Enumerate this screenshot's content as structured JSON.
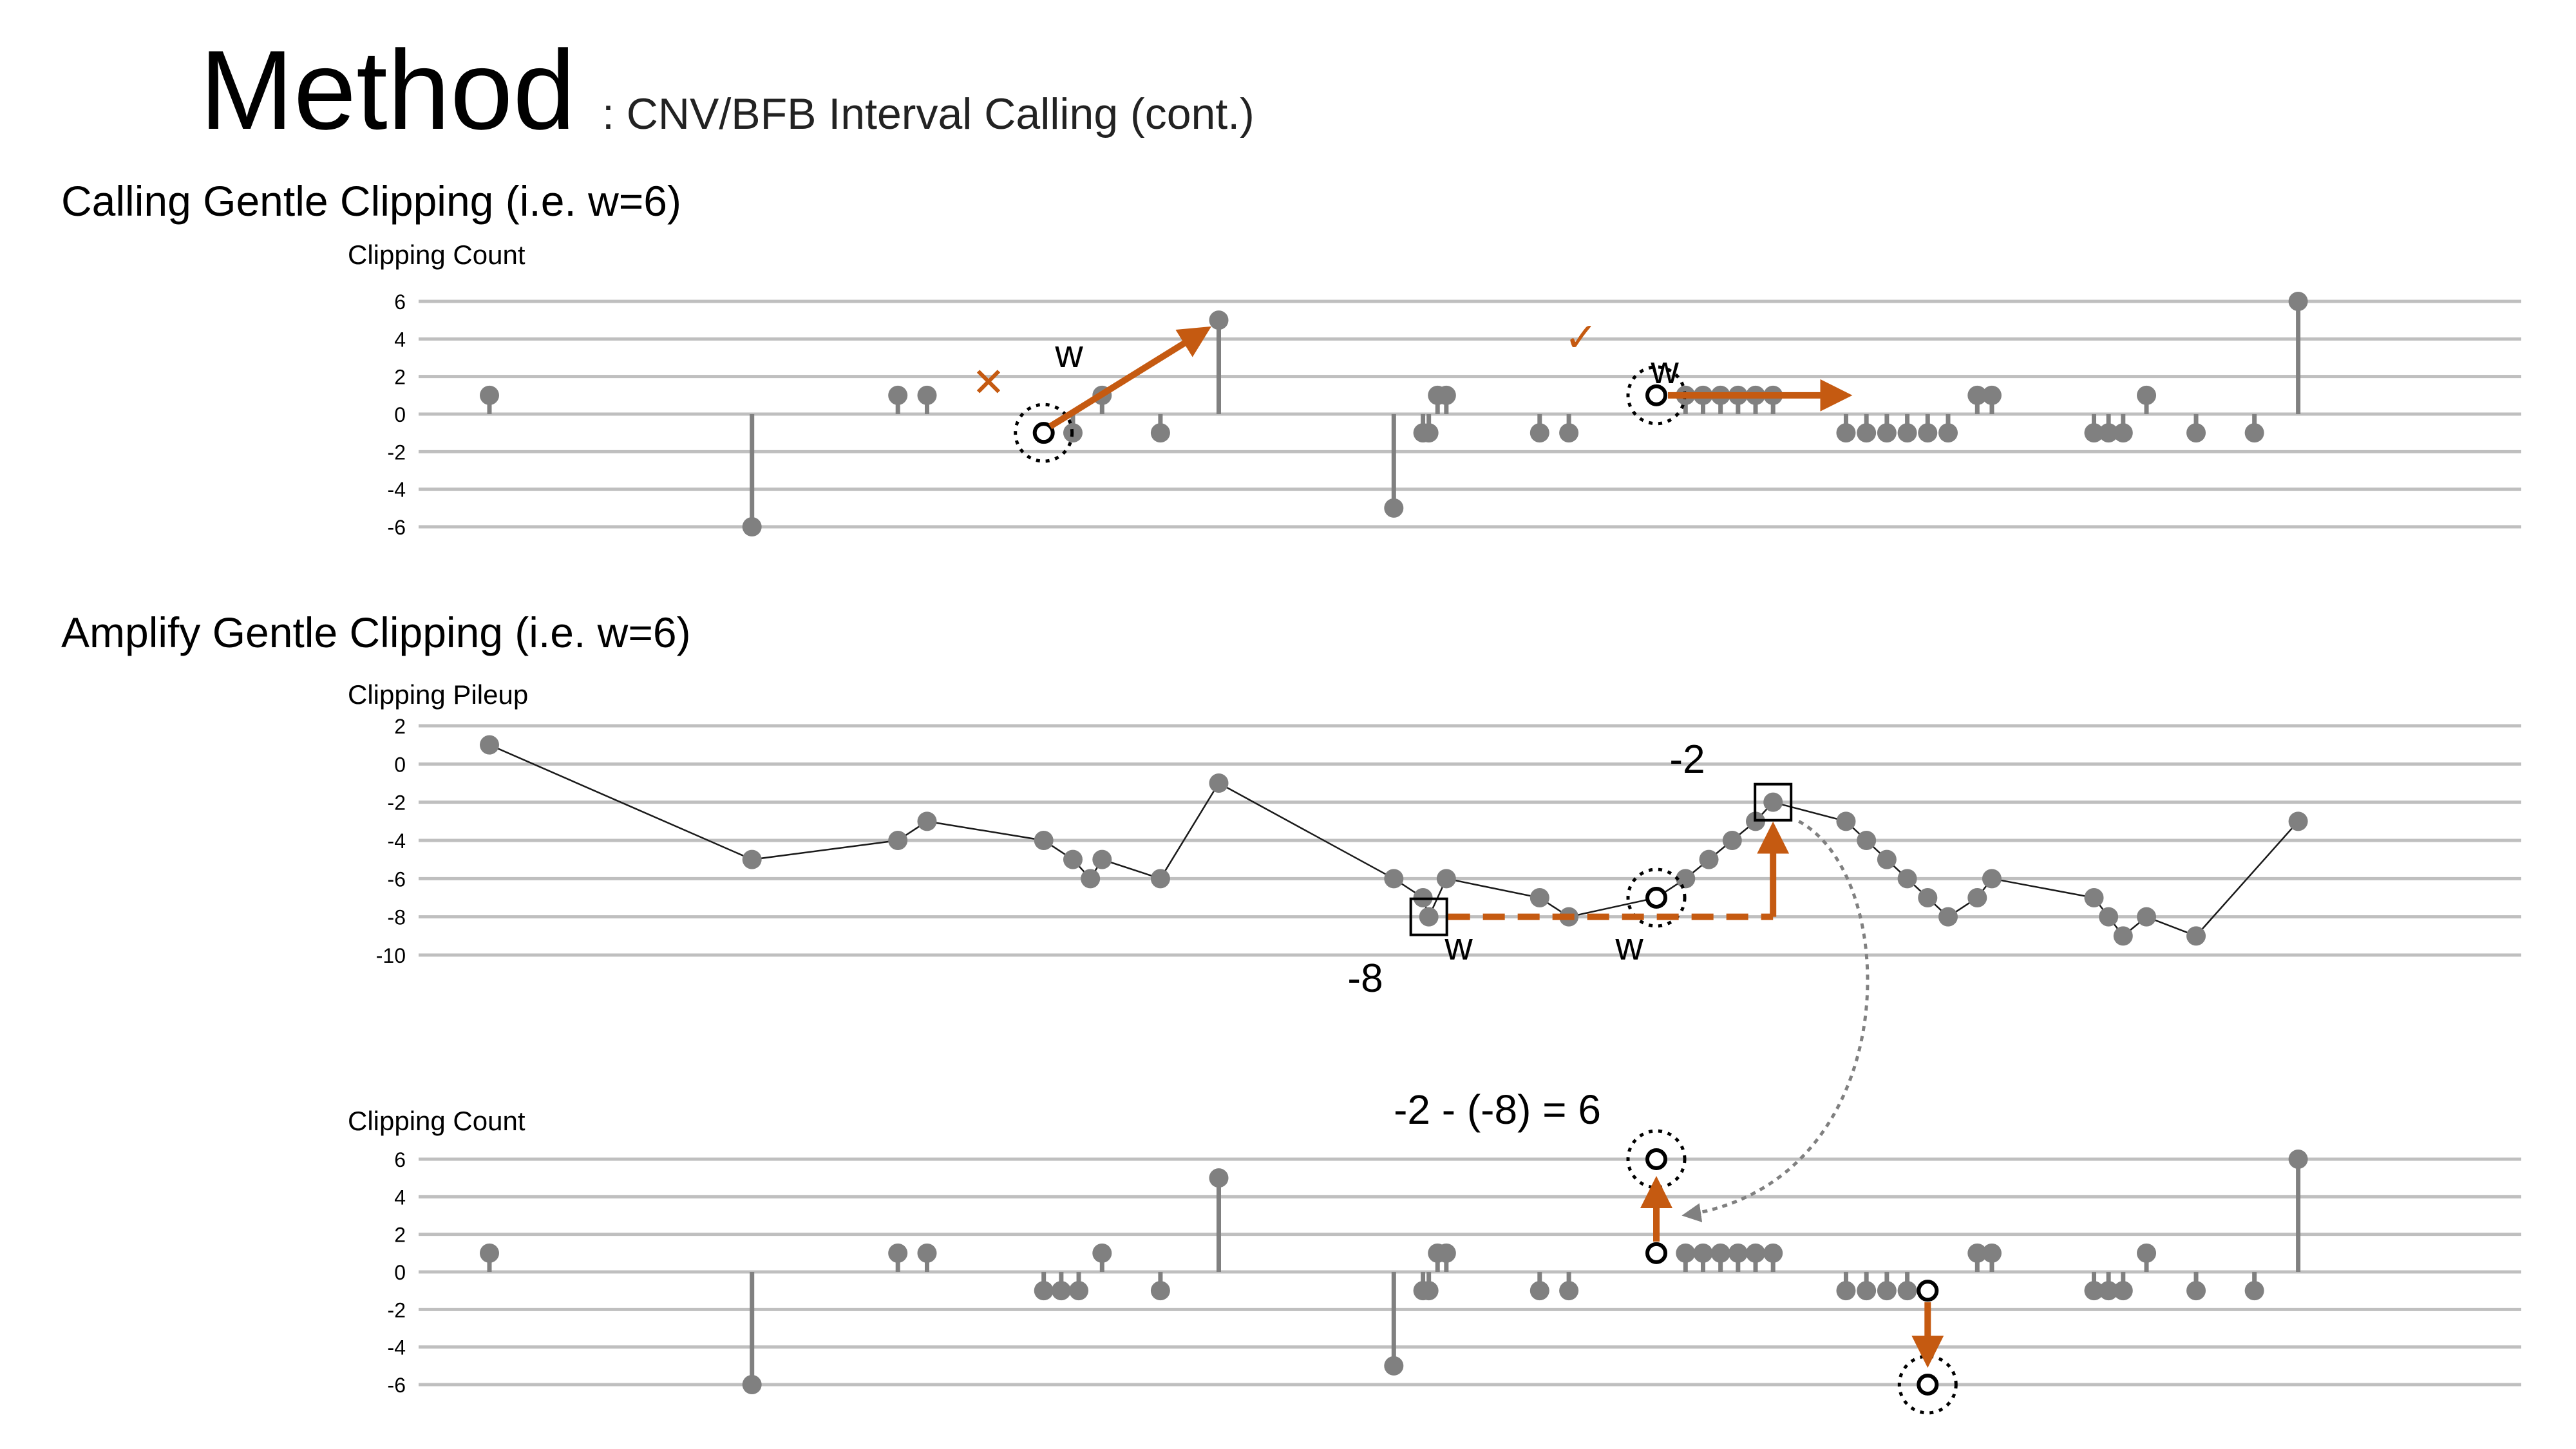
{
  "header": {
    "title": "Method",
    "subtitle": ": CNV/BFB Interval Calling (cont.)"
  },
  "sections": {
    "calling": "Calling Gentle Clipping (i.e. w=6)",
    "amplify": "Amplify Gentle Clipping (i.e. w=6)"
  },
  "colors": {
    "accent": "#C55A11",
    "marker": "#808080",
    "grid": "#BFBFBF",
    "line": "#1a1a1a"
  },
  "charts": [
    {
      "ylabel": "Clipping Count",
      "type": "stem",
      "yticks": [
        6,
        4,
        2,
        0,
        -2,
        -4,
        -6
      ],
      "points": [
        {
          "x": 1,
          "y": 1
        },
        {
          "x": 10,
          "y": -6
        },
        {
          "x": 15,
          "y": 1
        },
        {
          "x": 16,
          "y": 1
        },
        {
          "x": 20,
          "y": -1,
          "hollow": true
        },
        {
          "x": 21,
          "y": -1
        },
        {
          "x": 22,
          "y": 1
        },
        {
          "x": 24,
          "y": -1
        },
        {
          "x": 26,
          "y": 5
        },
        {
          "x": 32,
          "y": -5
        },
        {
          "x": 33,
          "y": -1
        },
        {
          "x": 33.2,
          "y": -1
        },
        {
          "x": 33.5,
          "y": 1
        },
        {
          "x": 33.8,
          "y": 1
        },
        {
          "x": 37,
          "y": -1
        },
        {
          "x": 38,
          "y": -1
        },
        {
          "x": 41,
          "y": 1,
          "hollow": true
        },
        {
          "x": 42,
          "y": 1
        },
        {
          "x": 42.6,
          "y": 1
        },
        {
          "x": 43.2,
          "y": 1
        },
        {
          "x": 43.8,
          "y": 1
        },
        {
          "x": 44.4,
          "y": 1
        },
        {
          "x": 45,
          "y": 1
        },
        {
          "x": 47.5,
          "y": -1
        },
        {
          "x": 48.2,
          "y": -1
        },
        {
          "x": 48.9,
          "y": -1
        },
        {
          "x": 49.6,
          "y": -1
        },
        {
          "x": 50.3,
          "y": -1
        },
        {
          "x": 51,
          "y": -1
        },
        {
          "x": 52,
          "y": 1
        },
        {
          "x": 52.5,
          "y": 1
        },
        {
          "x": 56,
          "y": -1
        },
        {
          "x": 56.5,
          "y": -1
        },
        {
          "x": 57,
          "y": -1
        },
        {
          "x": 57.8,
          "y": 1
        },
        {
          "x": 59.5,
          "y": -1
        },
        {
          "x": 61.5,
          "y": -1
        },
        {
          "x": 63,
          "y": 6
        }
      ],
      "annotations": {
        "cross_label": "✕",
        "check_label": "✓",
        "w1": "w",
        "w2": "w"
      }
    },
    {
      "ylabel": "Clipping Pileup",
      "type": "line",
      "yticks": [
        2,
        0,
        -2,
        -4,
        -6,
        -8,
        -10
      ],
      "points": [
        {
          "x": 1,
          "y": 1
        },
        {
          "x": 10,
          "y": -5
        },
        {
          "x": 15,
          "y": -4
        },
        {
          "x": 16,
          "y": -3
        },
        {
          "x": 20,
          "y": -4
        },
        {
          "x": 21,
          "y": -5
        },
        {
          "x": 21.6,
          "y": -6
        },
        {
          "x": 22,
          "y": -5
        },
        {
          "x": 24,
          "y": -6
        },
        {
          "x": 26,
          "y": -1
        },
        {
          "x": 32,
          "y": -6
        },
        {
          "x": 33,
          "y": -7
        },
        {
          "x": 33.2,
          "y": -8
        },
        {
          "x": 33.8,
          "y": -6
        },
        {
          "x": 37,
          "y": -7
        },
        {
          "x": 38,
          "y": -8
        },
        {
          "x": 41,
          "y": -7,
          "hollow": true
        },
        {
          "x": 42,
          "y": -6
        },
        {
          "x": 42.8,
          "y": -5
        },
        {
          "x": 43.6,
          "y": -4
        },
        {
          "x": 44.4,
          "y": -3
        },
        {
          "x": 45,
          "y": -2
        },
        {
          "x": 47.5,
          "y": -3
        },
        {
          "x": 48.2,
          "y": -4
        },
        {
          "x": 48.9,
          "y": -5
        },
        {
          "x": 49.6,
          "y": -6
        },
        {
          "x": 50.3,
          "y": -7
        },
        {
          "x": 51,
          "y": -8
        },
        {
          "x": 52,
          "y": -7
        },
        {
          "x": 52.5,
          "y": -6
        },
        {
          "x": 56,
          "y": -7
        },
        {
          "x": 56.5,
          "y": -8
        },
        {
          "x": 57,
          "y": -9
        },
        {
          "x": 57.8,
          "y": -8
        },
        {
          "x": 59.5,
          "y": -9
        },
        {
          "x": 63,
          "y": -3
        }
      ],
      "annotations": {
        "low_value": "-8",
        "high_value": "-2",
        "w1": "w",
        "w2": "w"
      }
    },
    {
      "ylabel": "Clipping Count",
      "type": "stem",
      "yticks": [
        6,
        4,
        2,
        0,
        -2,
        -4,
        -6
      ],
      "points": [
        {
          "x": 1,
          "y": 1
        },
        {
          "x": 10,
          "y": -6
        },
        {
          "x": 15,
          "y": 1
        },
        {
          "x": 16,
          "y": 1
        },
        {
          "x": 20,
          "y": -1
        },
        {
          "x": 20.6,
          "y": -1
        },
        {
          "x": 21.2,
          "y": -1
        },
        {
          "x": 22,
          "y": 1
        },
        {
          "x": 24,
          "y": -1
        },
        {
          "x": 26,
          "y": 5
        },
        {
          "x": 32,
          "y": -5
        },
        {
          "x": 33,
          "y": -1
        },
        {
          "x": 33.2,
          "y": -1
        },
        {
          "x": 33.5,
          "y": 1
        },
        {
          "x": 33.8,
          "y": 1
        },
        {
          "x": 37,
          "y": -1
        },
        {
          "x": 38,
          "y": -1
        },
        {
          "x": 41,
          "y": 1,
          "hollow": true
        },
        {
          "x": 42,
          "y": 1
        },
        {
          "x": 42.6,
          "y": 1
        },
        {
          "x": 43.2,
          "y": 1
        },
        {
          "x": 43.8,
          "y": 1
        },
        {
          "x": 44.4,
          "y": 1
        },
        {
          "x": 45,
          "y": 1
        },
        {
          "x": 47.5,
          "y": -1
        },
        {
          "x": 48.2,
          "y": -1
        },
        {
          "x": 48.9,
          "y": -1
        },
        {
          "x": 49.6,
          "y": -1
        },
        {
          "x": 50.3,
          "y": -1,
          "hollow": true
        },
        {
          "x": 52,
          "y": 1
        },
        {
          "x": 52.5,
          "y": 1
        },
        {
          "x": 56,
          "y": -1
        },
        {
          "x": 56.5,
          "y": -1
        },
        {
          "x": 57,
          "y": -1
        },
        {
          "x": 57.8,
          "y": 1
        },
        {
          "x": 59.5,
          "y": -1
        },
        {
          "x": 61.5,
          "y": -1
        },
        {
          "x": 63,
          "y": 6
        }
      ],
      "targets": [
        {
          "x": 41,
          "y": 6
        },
        {
          "x": 50.3,
          "y": -6
        }
      ],
      "annotations": {
        "equation": "-2 - (-8) = 6"
      }
    }
  ]
}
